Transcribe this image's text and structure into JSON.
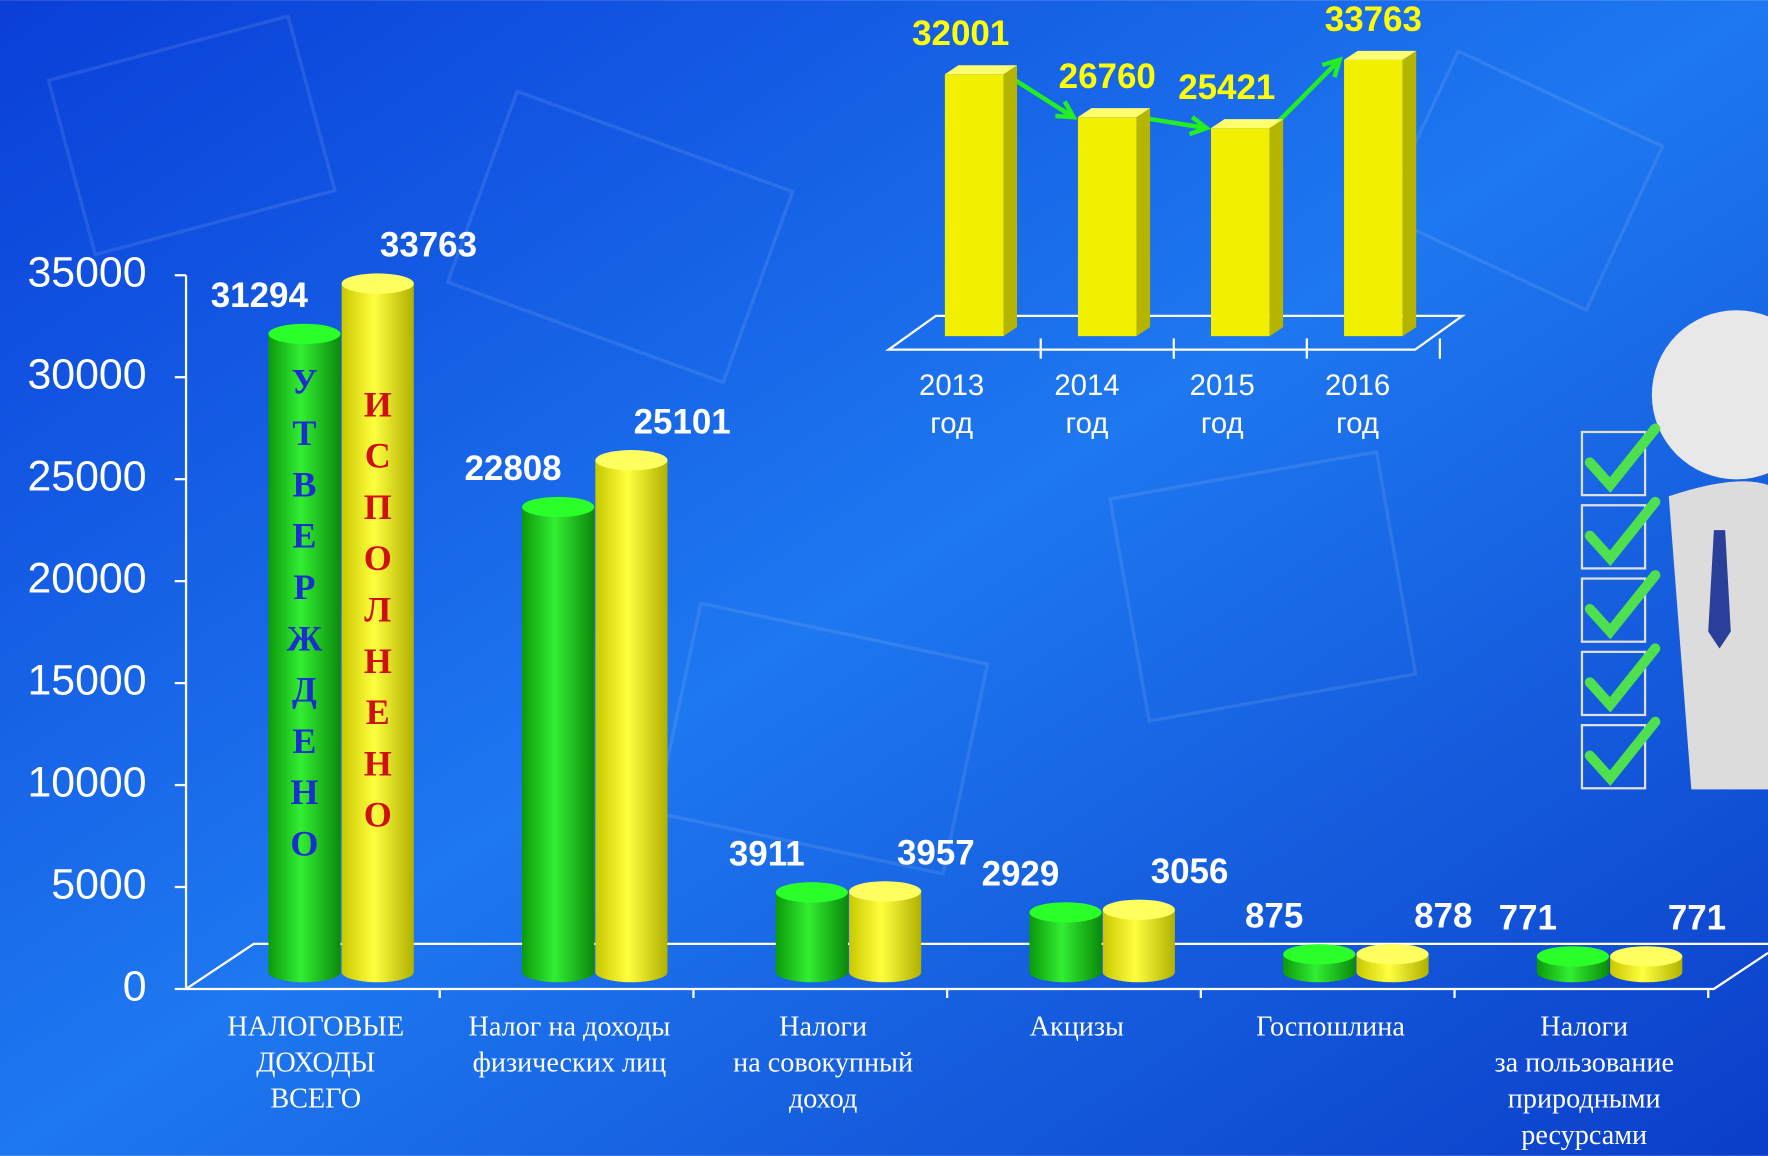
{
  "chart_data": [
    {
      "type": "bar",
      "categories": [
        "НАЛОГОВЫЕ\nДОХОДЫ\nВСЕГО",
        "Налог на доходы\nфизических лиц",
        "Налоги\nна совокупный\nдоход",
        "Акцизы",
        "Госпошлина",
        "Налоги\nза пользование\nприродными\nресурсами"
      ],
      "series": [
        {
          "name": "УТВЕРЖДЕНО",
          "color": "#1ec81e",
          "values": [
            31294,
            22808,
            3911,
            2929,
            875,
            771
          ]
        },
        {
          "name": "ИСПОЛНЕНО",
          "color": "#f0f000",
          "values": [
            33763,
            25101,
            3957,
            3056,
            878,
            771
          ]
        }
      ],
      "ylim": [
        0,
        35000
      ],
      "yticks": [
        0,
        5000,
        10000,
        15000,
        20000,
        25000,
        30000,
        35000
      ]
    },
    {
      "type": "bar",
      "categories": [
        "2013\nгод",
        "2014\nгод",
        "2015\nгод",
        "2016\nгод"
      ],
      "values": [
        32001,
        26760,
        25421,
        33763
      ],
      "color": "#f0f000",
      "ylim": [
        0,
        35000
      ]
    }
  ]
}
